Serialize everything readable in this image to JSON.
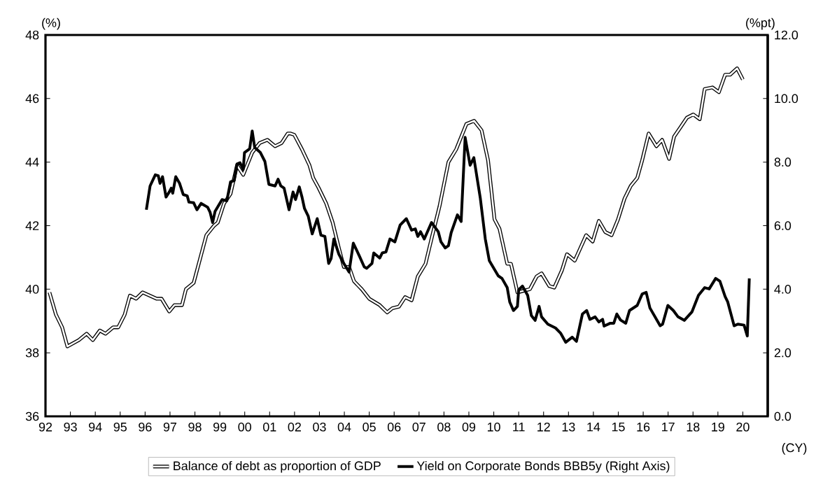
{
  "chart_data": {
    "type": "line",
    "xlabel": "(CY)",
    "ylabel": "(%)",
    "y2label": "(%pt)",
    "xlim": [
      1992,
      2021
    ],
    "xticks": [
      {
        "value": 1992,
        "label": "92"
      },
      {
        "value": 1993,
        "label": "93"
      },
      {
        "value": 1994,
        "label": "94"
      },
      {
        "value": 1995,
        "label": "95"
      },
      {
        "value": 1996,
        "label": "96"
      },
      {
        "value": 1997,
        "label": "97"
      },
      {
        "value": 1998,
        "label": "98"
      },
      {
        "value": 1999,
        "label": "99"
      },
      {
        "value": 2000,
        "label": "00"
      },
      {
        "value": 2001,
        "label": "01"
      },
      {
        "value": 2002,
        "label": "02"
      },
      {
        "value": 2003,
        "label": "03"
      },
      {
        "value": 2004,
        "label": "04"
      },
      {
        "value": 2005,
        "label": "05"
      },
      {
        "value": 2006,
        "label": "06"
      },
      {
        "value": 2007,
        "label": "07"
      },
      {
        "value": 2008,
        "label": "08"
      },
      {
        "value": 2009,
        "label": "09"
      },
      {
        "value": 2010,
        "label": "10"
      },
      {
        "value": 2011,
        "label": "11"
      },
      {
        "value": 2012,
        "label": "12"
      },
      {
        "value": 2013,
        "label": "13"
      },
      {
        "value": 2014,
        "label": "14"
      },
      {
        "value": 2015,
        "label": "15"
      },
      {
        "value": 2016,
        "label": "16"
      },
      {
        "value": 2017,
        "label": "17"
      },
      {
        "value": 2018,
        "label": "18"
      },
      {
        "value": 2019,
        "label": "19"
      },
      {
        "value": 2020,
        "label": "20"
      }
    ],
    "ylim": [
      36,
      48
    ],
    "yticks": [
      36,
      38,
      40,
      42,
      44,
      46,
      48
    ],
    "y2lim": [
      0,
      12
    ],
    "y2ticks": [
      {
        "value": 0,
        "label": "0.0"
      },
      {
        "value": 2,
        "label": "2.0"
      },
      {
        "value": 4,
        "label": "4.0"
      },
      {
        "value": 6,
        "label": "6.0"
      },
      {
        "value": 8,
        "label": "8.0"
      },
      {
        "value": 10,
        "label": "10.0"
      },
      {
        "value": 12,
        "label": "12.0"
      }
    ],
    "grid": false,
    "legend": "bottom",
    "series": [
      {
        "name": "Balance of debt as proportion of GDP",
        "color": "#000000",
        "x": [
          1992.16,
          1992.42,
          1992.67,
          1992.88,
          1993.34,
          1993.65,
          1993.9,
          1994.18,
          1994.41,
          1994.72,
          1994.92,
          1995.18,
          1995.39,
          1995.64,
          1995.9,
          1996.46,
          1996.66,
          1996.97,
          1997.18,
          1997.48,
          1997.64,
          1997.95,
          1998.46,
          1998.77,
          1998.92,
          1999.17,
          1999.43,
          1999.69,
          1999.94,
          2000.3,
          2000.6,
          2000.91,
          2001.22,
          2001.48,
          2001.73,
          2001.83,
          2001.99,
          2002.3,
          2002.6,
          2002.75,
          2002.96,
          2003.27,
          2003.53,
          2003.78,
          2003.98,
          2004.19,
          2004.39,
          2004.7,
          2005.0,
          2005.21,
          2005.42,
          2005.72,
          2005.93,
          2006.19,
          2006.44,
          2006.7,
          2006.95,
          2007.26,
          2007.52,
          2007.82,
          2008.18,
          2008.49,
          2008.9,
          2009.21,
          2009.51,
          2009.77,
          2010.03,
          2010.23,
          2010.54,
          2010.69,
          2010.95,
          2011.45,
          2011.72,
          2011.92,
          2012.23,
          2012.43,
          2012.74,
          2012.94,
          2013.25,
          2013.71,
          2013.97,
          2014.22,
          2014.48,
          2014.73,
          2014.99,
          2015.25,
          2015.5,
          2015.76,
          2015.96,
          2016.22,
          2016.53,
          2016.76,
          2017.04,
          2017.24,
          2017.5,
          2017.76,
          2018.01,
          2018.27,
          2018.47,
          2018.78,
          2019.04,
          2019.29,
          2019.49,
          2019.77,
          2020.0
        ],
        "values": [
          39.9,
          39.2,
          38.8,
          38.2,
          38.4,
          38.6,
          38.4,
          38.7,
          38.6,
          38.8,
          38.8,
          39.2,
          39.8,
          39.7,
          39.9,
          39.7,
          39.7,
          39.3,
          39.5,
          39.5,
          40.0,
          40.2,
          41.7,
          42.0,
          42.1,
          42.7,
          43.0,
          43.9,
          43.6,
          44.3,
          44.6,
          44.7,
          44.5,
          44.6,
          44.9,
          44.9,
          44.86,
          44.4,
          43.9,
          43.5,
          43.2,
          42.7,
          42.1,
          41.3,
          40.7,
          40.7,
          40.25,
          40.0,
          39.7,
          39.6,
          39.5,
          39.27,
          39.4,
          39.45,
          39.75,
          39.65,
          40.4,
          40.8,
          41.65,
          42.6,
          44.0,
          44.4,
          45.2,
          45.3,
          45.0,
          44.06,
          42.2,
          41.9,
          40.8,
          40.8,
          39.9,
          40.0,
          40.4,
          40.5,
          40.1,
          40.05,
          40.6,
          41.1,
          40.9,
          41.7,
          41.5,
          42.15,
          41.8,
          41.7,
          42.2,
          42.85,
          43.25,
          43.5,
          44.06,
          44.9,
          44.5,
          44.7,
          44.1,
          44.8,
          45.1,
          45.4,
          45.5,
          45.35,
          46.3,
          46.35,
          46.2,
          46.75,
          46.75,
          46.95,
          46.6
        ]
      },
      {
        "name": "Yield on Corporate Bonds BBB5y (Right Axis)",
        "color": "#000000",
        "axis": "y2",
        "x": [
          1996.05,
          1996.2,
          1996.41,
          1996.53,
          1996.6,
          1996.7,
          1996.84,
          1996.97,
          1997.05,
          1997.11,
          1997.23,
          1997.38,
          1997.53,
          1997.69,
          1997.76,
          1997.95,
          1998.08,
          1998.25,
          1998.51,
          1998.61,
          1998.71,
          1998.81,
          1999.09,
          1999.28,
          1999.43,
          1999.58,
          1999.69,
          1999.81,
          1999.94,
          1999.99,
          2000.2,
          2000.3,
          2000.4,
          2000.63,
          2000.81,
          2000.97,
          2001.22,
          2001.34,
          2001.45,
          2001.58,
          2001.78,
          2001.94,
          2002.04,
          2002.19,
          2002.3,
          2002.4,
          2002.55,
          2002.71,
          2002.91,
          2003.06,
          2003.22,
          2003.37,
          2003.47,
          2003.58,
          2003.78,
          2003.98,
          2004.19,
          2004.36,
          2004.6,
          2004.8,
          2004.9,
          2005.11,
          2005.18,
          2005.42,
          2005.52,
          2005.67,
          2005.83,
          2006.03,
          2006.24,
          2006.49,
          2006.7,
          2006.85,
          2006.95,
          2007.06,
          2007.21,
          2007.5,
          2007.77,
          2007.88,
          2008.05,
          2008.18,
          2008.29,
          2008.54,
          2008.69,
          2008.85,
          2009.05,
          2009.2,
          2009.46,
          2009.66,
          2009.82,
          2010.18,
          2010.33,
          2010.54,
          2010.64,
          2010.79,
          2010.95,
          2011.0,
          2011.15,
          2011.36,
          2011.51,
          2011.66,
          2011.82,
          2011.92,
          2012.17,
          2012.48,
          2012.69,
          2012.89,
          2013.15,
          2013.32,
          2013.56,
          2013.73,
          2013.86,
          2014.07,
          2014.22,
          2014.37,
          2014.43,
          2014.68,
          2014.82,
          2014.94,
          2015.09,
          2015.3,
          2015.45,
          2015.76,
          2015.96,
          2016.12,
          2016.27,
          2016.68,
          2016.78,
          2016.99,
          2017.21,
          2017.4,
          2017.65,
          2017.96,
          2018.22,
          2018.47,
          2018.65,
          2018.91,
          2019.08,
          2019.29,
          2019.39,
          2019.65,
          2019.8,
          2020.05,
          2020.18,
          2020.26
        ],
        "values": [
          6.5,
          7.25,
          7.6,
          7.57,
          7.33,
          7.54,
          6.9,
          7.06,
          7.18,
          7.02,
          7.54,
          7.34,
          6.98,
          6.94,
          6.74,
          6.72,
          6.5,
          6.7,
          6.58,
          6.42,
          6.1,
          6.45,
          6.82,
          6.78,
          7.38,
          7.42,
          7.94,
          7.98,
          7.77,
          8.3,
          8.42,
          8.98,
          8.46,
          8.3,
          8.02,
          7.3,
          7.25,
          7.46,
          7.25,
          7.18,
          6.5,
          7.06,
          6.82,
          7.22,
          6.9,
          6.54,
          6.3,
          5.74,
          6.22,
          5.7,
          5.66,
          4.81,
          4.97,
          5.58,
          5.1,
          4.81,
          4.54,
          5.45,
          5.05,
          4.7,
          4.66,
          4.81,
          5.14,
          4.98,
          5.14,
          5.17,
          5.58,
          5.49,
          6.02,
          6.22,
          5.86,
          5.9,
          5.66,
          5.81,
          5.58,
          6.1,
          5.81,
          5.49,
          5.3,
          5.37,
          5.78,
          6.34,
          6.13,
          8.78,
          7.9,
          8.14,
          6.86,
          5.58,
          4.9,
          4.42,
          4.34,
          4.05,
          3.6,
          3.33,
          3.46,
          3.98,
          4.1,
          3.81,
          3.17,
          3.02,
          3.46,
          3.13,
          2.9,
          2.78,
          2.61,
          2.33,
          2.49,
          2.36,
          3.22,
          3.33,
          3.05,
          3.13,
          2.97,
          3.05,
          2.84,
          2.93,
          2.93,
          3.22,
          3.03,
          2.93,
          3.33,
          3.49,
          3.85,
          3.9,
          3.41,
          2.85,
          2.9,
          3.49,
          3.33,
          3.13,
          3.02,
          3.29,
          3.81,
          4.05,
          4.01,
          4.34,
          4.25,
          3.77,
          3.61,
          2.85,
          2.9,
          2.87,
          2.53,
          4.34
        ]
      }
    ]
  }
}
